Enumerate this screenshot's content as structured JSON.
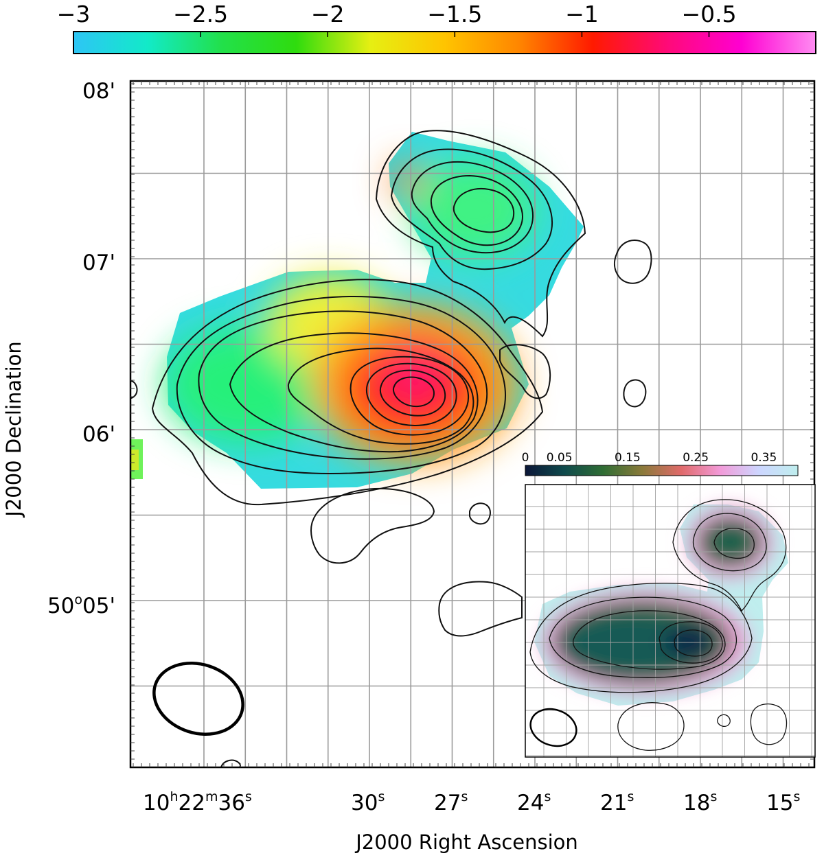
{
  "colorbar": {
    "ticks": [
      {
        "value": -3,
        "label": "−3"
      },
      {
        "value": -2.5,
        "label": "−2.5"
      },
      {
        "value": -2,
        "label": "−2"
      },
      {
        "value": -1.5,
        "label": "−1.5"
      },
      {
        "value": -1,
        "label": "−1"
      },
      {
        "value": -0.5,
        "label": "−0.5"
      }
    ],
    "range": [
      -3.0,
      -0.08
    ],
    "colors": [
      "#2ec5f5",
      "#12eac8",
      "#22e04a",
      "#2fdc0e",
      "#e6ef12",
      "#ffc400",
      "#ff8600",
      "#ff1a00",
      "#ff0a78",
      "#ff00d2",
      "#ff8cf2"
    ]
  },
  "inset_colorbar": {
    "ticks": [
      {
        "value": 0,
        "label": "0"
      },
      {
        "value": 0.05,
        "label": "0.05"
      },
      {
        "value": 0.15,
        "label": "0.15"
      },
      {
        "value": 0.25,
        "label": "0.25"
      },
      {
        "value": 0.35,
        "label": "0.35"
      }
    ],
    "range": [
      0.0,
      0.4
    ],
    "colors": [
      "#0b1638",
      "#0f4a4c",
      "#2f6d34",
      "#8a7a3a",
      "#e06a6a",
      "#f29ad8",
      "#cdd6ff",
      "#bfeeee"
    ]
  },
  "axes": {
    "xlabel": "J2000 Right Ascension",
    "ylabel": "J2000 Declination",
    "x_ticks": [
      {
        "ra_s": 36,
        "main": "10",
        "h": "h",
        "m_val": "22",
        "m": "m",
        "s_val": "36",
        "s": "s"
      },
      {
        "ra_s": 30,
        "s_val": "30",
        "s": "s"
      },
      {
        "ra_s": 27,
        "s_val": "27",
        "s": "s"
      },
      {
        "ra_s": 24,
        "s_val": "24",
        "s": "s"
      },
      {
        "ra_s": 21,
        "s_val": "21",
        "s": "s"
      },
      {
        "ra_s": 18,
        "s_val": "18",
        "s": "s"
      },
      {
        "ra_s": 15,
        "s_val": "15",
        "s": "s"
      }
    ],
    "y_ticks": [
      {
        "dec_arcmin": 8,
        "label": "08'"
      },
      {
        "dec_arcmin": 7,
        "label": "07'"
      },
      {
        "dec_arcmin": 6,
        "label": "06'"
      },
      {
        "dec_arcmin": 5,
        "deg": "50",
        "o": "o",
        "rest": "05'"
      }
    ]
  },
  "chart_data": {
    "type": "heatmap",
    "title": "",
    "quantity_range": [
      -3.0,
      -0.08
    ],
    "sources": [
      {
        "ra_s": 28.3,
        "dec_arcmin": 6.27,
        "peak": -0.4
      },
      {
        "ra_s": 26.2,
        "dec_arcmin": 7.29,
        "peak": -2.3
      },
      {
        "ra_s": 33.0,
        "dec_arcmin": 6.3,
        "peak": -2.6
      }
    ],
    "inset": {
      "type": "heatmap",
      "quantity_range": [
        0.0,
        0.4
      ],
      "sources": [
        {
          "ra_s": 28.3,
          "dec_arcmin": 6.27,
          "peak": 0.05
        },
        {
          "ra_s": 26.2,
          "dec_arcmin": 7.29,
          "peak": 0.12
        }
      ]
    }
  }
}
